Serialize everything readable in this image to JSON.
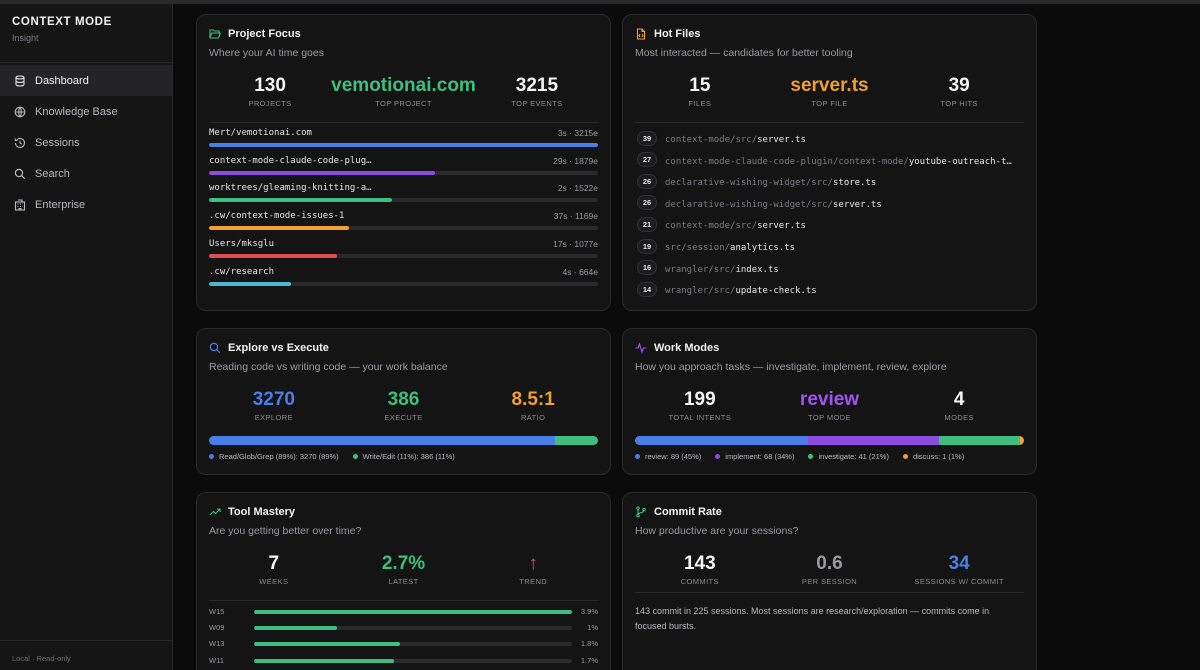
{
  "sidebar": {
    "brand_title": "CONTEXT MODE",
    "brand_subtitle": "Insight",
    "items": [
      {
        "label": "Dashboard",
        "icon": "database-icon",
        "active": true
      },
      {
        "label": "Knowledge Base",
        "icon": "globe-icon"
      },
      {
        "label": "Sessions",
        "icon": "history-icon"
      },
      {
        "label": "Search",
        "icon": "search-icon"
      },
      {
        "label": "Enterprise",
        "icon": "building-icon"
      }
    ],
    "footer": "Local · Read-only"
  },
  "colors": {
    "blue": "#4a7ee8",
    "purple": "#8c4ce0",
    "green": "#3fbf7f",
    "orange": "#f0a030",
    "red": "#e05050",
    "cyan": "#4bb8d0"
  },
  "project_focus": {
    "title": "Project Focus",
    "subtitle": "Where your AI time goes",
    "icon": "folder-open-icon",
    "stats": [
      {
        "value": "130",
        "label": "PROJECTS"
      },
      {
        "value": "vemotionai.com",
        "label": "TOP PROJECT"
      },
      {
        "value": "3215",
        "label": "TOP EVENTS"
      }
    ],
    "rows": [
      {
        "name": "Mert/vemotionai.com",
        "meta": "3s · 3215e",
        "share": 1.0,
        "color": "#4a7ee8"
      },
      {
        "name": "context-mode-claude-code-plug…",
        "meta": "29s · 1879e",
        "share": 0.58,
        "color": "#8c4ce0"
      },
      {
        "name": "worktrees/gleaming-knitting-a…",
        "meta": "2s · 1522e",
        "share": 0.47,
        "color": "#3fbf7f"
      },
      {
        "name": ".cw/context-mode-issues-1",
        "meta": "37s · 1169e",
        "share": 0.36,
        "color": "#f0a030"
      },
      {
        "name": "Users/mksglu",
        "meta": "17s · 1077e",
        "share": 0.33,
        "color": "#e05050"
      },
      {
        "name": ".cw/research",
        "meta": "4s · 664e",
        "share": 0.21,
        "color": "#4bb8d0"
      }
    ]
  },
  "hot_files": {
    "title": "Hot Files",
    "subtitle": "Most interacted — candidates for better tooling",
    "icon": "file-code-icon",
    "stats": [
      {
        "value": "15",
        "label": "FILES"
      },
      {
        "value": "server.ts",
        "label": "TOP FILE"
      },
      {
        "value": "39",
        "label": "TOP HITS"
      }
    ],
    "files": [
      {
        "count": "39",
        "dir": "context-mode/src/",
        "base": "server.ts"
      },
      {
        "count": "27",
        "dir": "context-mode-claude-code-plugin/context-mode/",
        "base": "youtube-outreach-t…"
      },
      {
        "count": "26",
        "dir": "declarative-wishing-widget/src/",
        "base": "store.ts"
      },
      {
        "count": "26",
        "dir": "declarative-wishing-widget/src/",
        "base": "server.ts"
      },
      {
        "count": "21",
        "dir": "context-mode/src/",
        "base": "server.ts"
      },
      {
        "count": "19",
        "dir": "src/session/",
        "base": "analytics.ts"
      },
      {
        "count": "16",
        "dir": "wrangler/src/",
        "base": "index.ts"
      },
      {
        "count": "14",
        "dir": "wrangler/src/",
        "base": "update-check.ts"
      }
    ]
  },
  "explore_execute": {
    "title": "Explore vs Execute",
    "subtitle": "Reading code vs writing code — your work balance",
    "icon": "search-icon",
    "stats": [
      {
        "value": "3270",
        "label": "EXPLORE"
      },
      {
        "value": "386",
        "label": "EXECUTE"
      },
      {
        "value": "8.5:1",
        "label": "RATIO"
      }
    ],
    "segments": [
      {
        "share": 0.89,
        "color": "#4a7ee8",
        "legend": "Read/Glob/Grep (89%): 3270 (89%)"
      },
      {
        "share": 0.11,
        "color": "#3fbf7f",
        "legend": "Write/Edit (11%): 386 (11%)"
      }
    ]
  },
  "work_modes": {
    "title": "Work Modes",
    "subtitle": "How you approach tasks — investigate, implement, review, explore",
    "icon": "activity-icon",
    "stats": [
      {
        "value": "199",
        "label": "TOTAL INTENTS"
      },
      {
        "value": "review",
        "label": "TOP MODE"
      },
      {
        "value": "4",
        "label": "MODES"
      }
    ],
    "segments": [
      {
        "share": 0.45,
        "color": "#4a7ee8",
        "legend": "review: 89 (45%)"
      },
      {
        "share": 0.34,
        "color": "#8c4ce0",
        "legend": "implement: 68 (34%)"
      },
      {
        "share": 0.21,
        "color": "#3fbf7f",
        "legend": "investigate: 41 (21%)"
      },
      {
        "share": 0.01,
        "color": "#f0a030",
        "legend": "discuss: 1 (1%)"
      }
    ]
  },
  "tool_mastery": {
    "title": "Tool Mastery",
    "subtitle": "Are you getting better over time?",
    "icon": "trending-up-icon",
    "stats": [
      {
        "value": "7",
        "label": "WEEKS"
      },
      {
        "value": "2.7%",
        "label": "LATEST"
      },
      {
        "value": "↑",
        "label": "TREND"
      }
    ],
    "weeks": [
      {
        "label": "W15",
        "value": "3.9%",
        "share": 1.0
      },
      {
        "label": "W09",
        "value": "1%",
        "share": 0.26
      },
      {
        "label": "W13",
        "value": "1.8%",
        "share": 0.46
      },
      {
        "label": "W11",
        "value": "1.7%",
        "share": 0.44
      }
    ]
  },
  "commit_rate": {
    "title": "Commit Rate",
    "subtitle": "How productive are your sessions?",
    "icon": "git-branch-icon",
    "stats": [
      {
        "value": "143",
        "label": "COMMITS"
      },
      {
        "value": "0.6",
        "label": "PER SESSION"
      },
      {
        "value": "34",
        "label": "SESSIONS W/ COMMIT"
      }
    ],
    "summary": "143 commit in 225 sessions. Most sessions are research/exploration — commits come in focused bursts."
  }
}
